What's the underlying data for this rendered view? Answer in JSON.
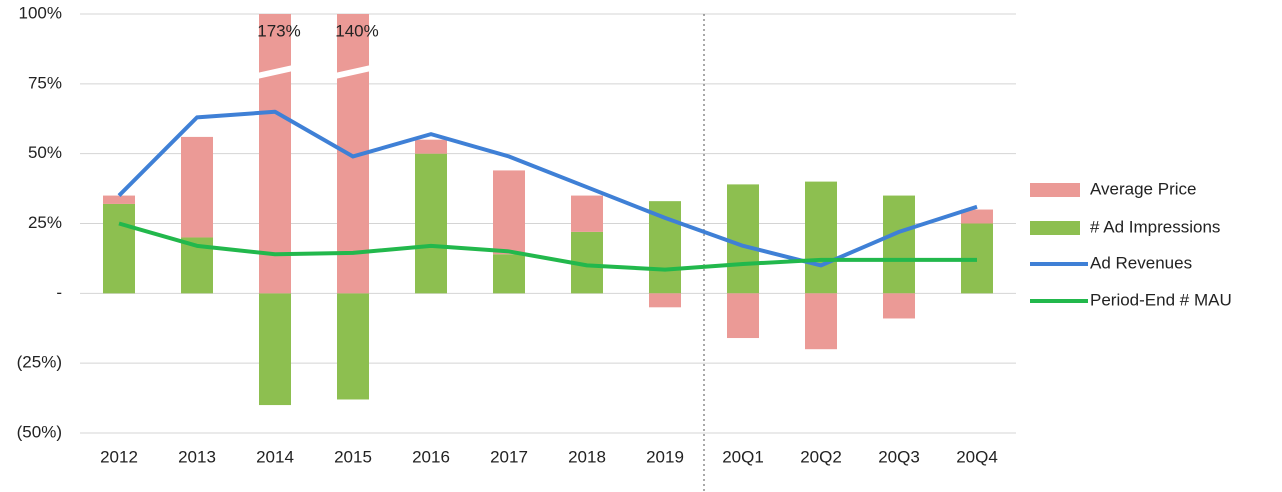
{
  "chart_data": {
    "type": "bar",
    "categories": [
      "2012",
      "2013",
      "2014",
      "2015",
      "2016",
      "2017",
      "2018",
      "2019",
      "20Q1",
      "20Q2",
      "20Q3",
      "20Q4"
    ],
    "series": [
      {
        "name": "Average Price",
        "type": "bar",
        "color": "#eb9a96",
        "values": [
          3,
          36,
          173,
          140,
          5,
          30,
          13,
          -5,
          -16,
          -20,
          -9,
          5
        ],
        "value_labels": [
          null,
          null,
          "173%",
          "140%",
          null,
          null,
          null,
          null,
          null,
          null,
          null,
          null
        ]
      },
      {
        "name": "# Ad Impressions",
        "type": "bar",
        "color": "#8dbf50",
        "values": [
          32,
          20,
          -40,
          -38,
          50,
          14,
          22,
          33,
          39,
          40,
          35,
          25
        ]
      },
      {
        "name": "Ad Revenues",
        "type": "line",
        "color": "#3f80d6",
        "values": [
          35,
          63,
          65,
          49,
          57,
          49,
          38,
          27,
          17,
          10,
          22,
          31
        ]
      },
      {
        "name": "Period-End # MAU",
        "type": "line",
        "color": "#22b84c",
        "values": [
          25,
          17,
          14,
          14.5,
          17,
          15,
          10,
          8.5,
          10.5,
          12,
          12,
          12
        ]
      }
    ],
    "ylim": [
      -50,
      100
    ],
    "yticks": [
      {
        "value": -50,
        "label": "(50%)"
      },
      {
        "value": -25,
        "label": "(25%)"
      },
      {
        "value": 0,
        "label": "-"
      },
      {
        "value": 25,
        "label": "25%"
      },
      {
        "value": 50,
        "label": "50%"
      },
      {
        "value": 75,
        "label": "75%"
      },
      {
        "value": 100,
        "label": "100%"
      }
    ],
    "grid": true,
    "legend": "right"
  }
}
